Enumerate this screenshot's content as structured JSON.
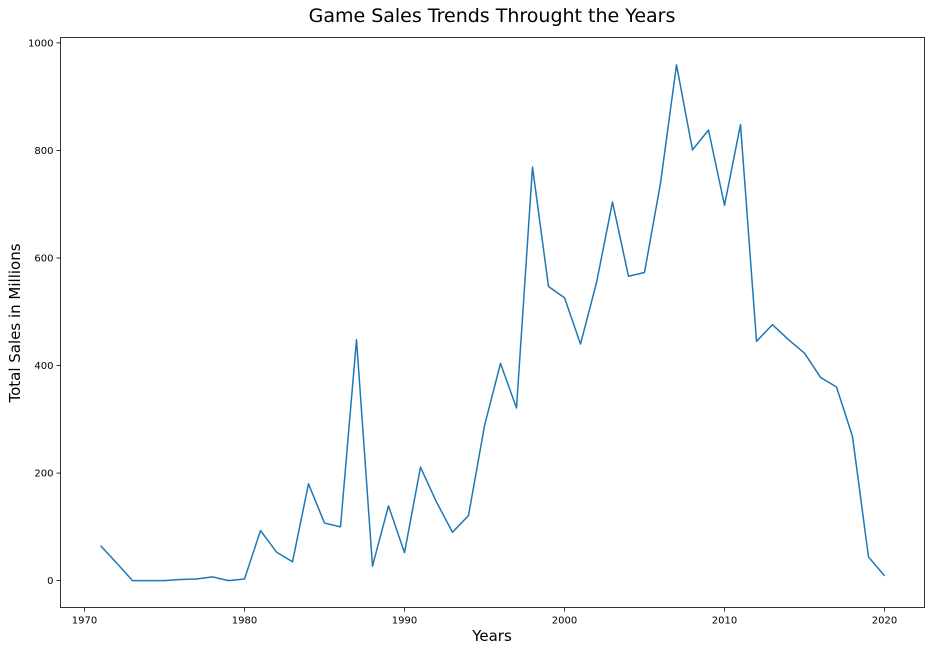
{
  "chart_data": {
    "type": "line",
    "title": "Game Sales Trends Throught the Years",
    "xlabel": "Years",
    "ylabel": "Total Sales in Millions",
    "xlim": [
      1968.5,
      2022.5
    ],
    "ylim": [
      -50,
      1010
    ],
    "xticks": [
      1970,
      1980,
      1990,
      2000,
      2010,
      2020
    ],
    "yticks": [
      0,
      200,
      400,
      600,
      800,
      1000
    ],
    "grid": false,
    "line_color": "#1f77b4",
    "series": [
      {
        "x": [
          1971,
          1972,
          1973,
          1974,
          1975,
          1976,
          1977,
          1978,
          1979,
          1980,
          1981,
          1982,
          1983,
          1984,
          1985,
          1986,
          1987,
          1988,
          1989,
          1990,
          1991,
          1992,
          1993,
          1994,
          1995,
          1996,
          1997,
          1998,
          1999,
          2000,
          2001,
          2002,
          2003,
          2004,
          2005,
          2006,
          2007,
          2008,
          2009,
          2010,
          2011,
          2012,
          2013,
          2014,
          2015,
          2016,
          2017,
          2018,
          2019,
          2020
        ],
        "values": [
          65,
          33,
          0,
          0,
          0,
          2,
          3,
          7,
          0,
          3,
          93,
          53,
          35,
          180,
          107,
          100,
          448,
          27,
          139,
          52,
          211,
          146,
          90,
          121,
          288,
          404,
          321,
          769,
          547,
          526,
          440,
          554,
          704,
          566,
          573,
          739,
          959,
          801,
          838,
          698,
          848,
          445,
          476,
          448,
          423,
          378,
          360,
          268,
          44,
          9
        ]
      }
    ]
  }
}
